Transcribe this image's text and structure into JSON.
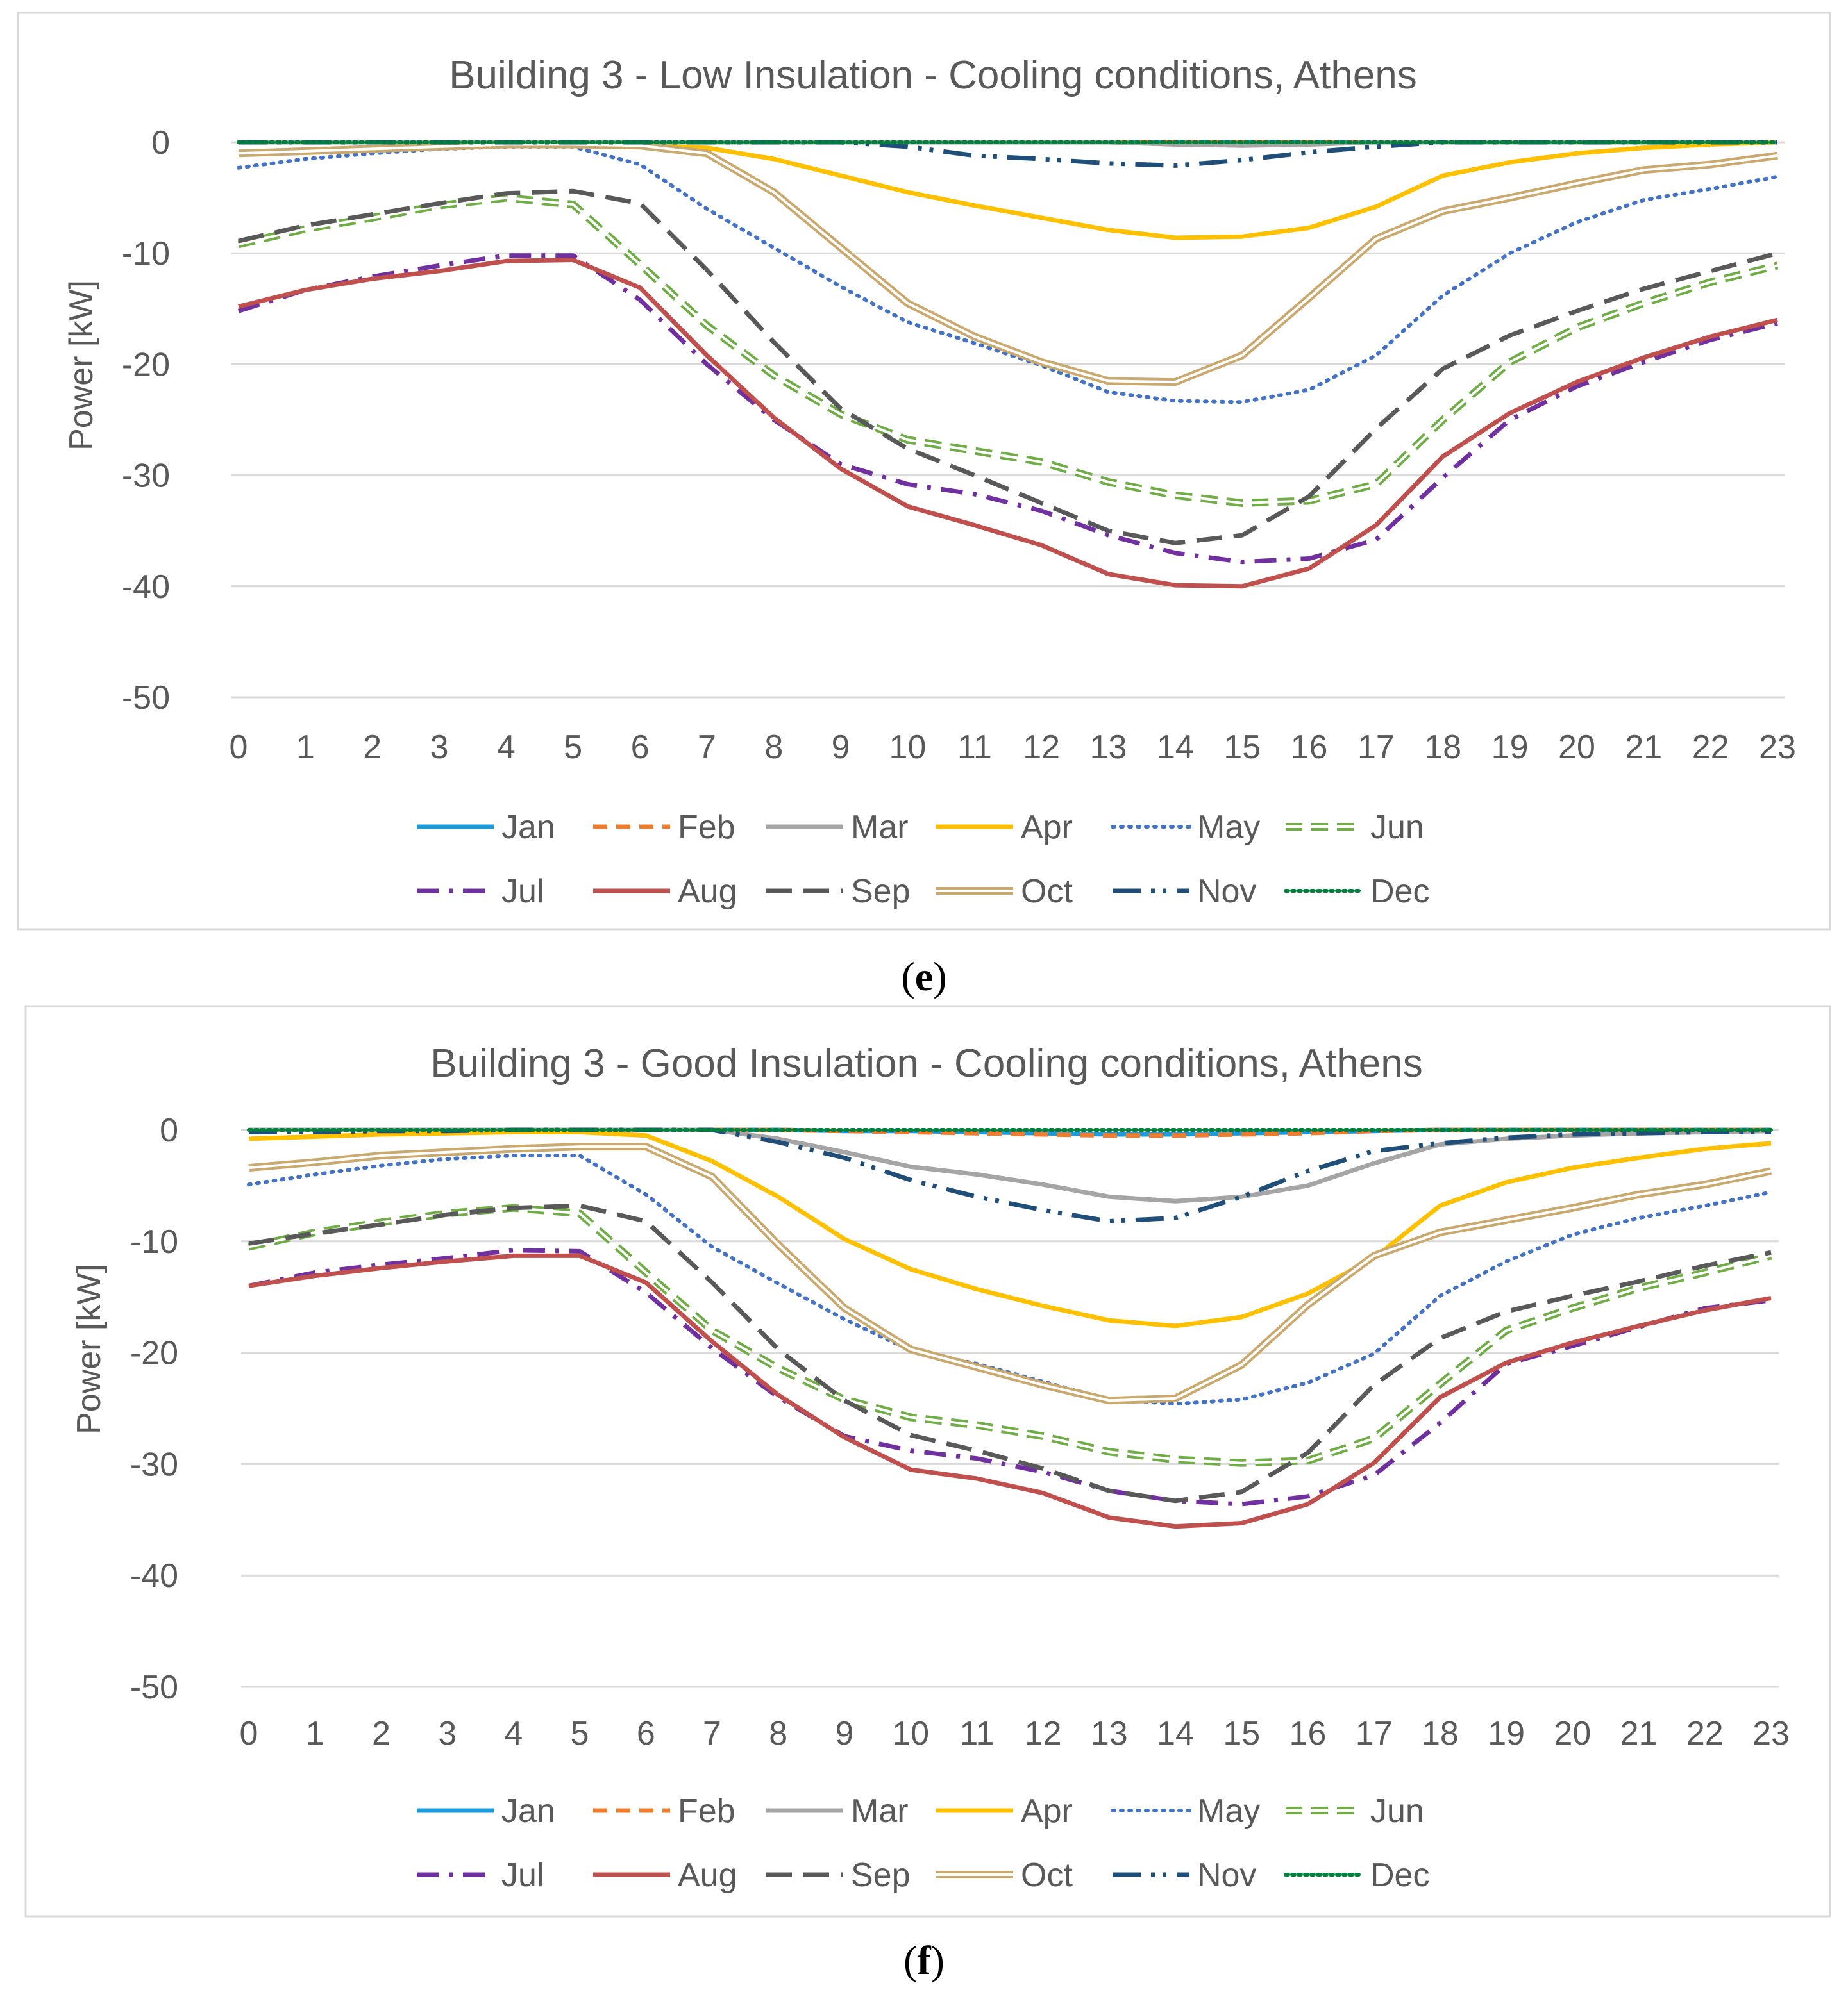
{
  "chart_data": [
    {
      "type": "line",
      "title": "Building 3 - Low Insulation - Cooling conditions, Athens",
      "caption_letter": "e",
      "caption_open": "(",
      "caption_close": ")",
      "xlabel": "",
      "ylabel": "Power [kW]",
      "ylim": [
        -50,
        0
      ],
      "yticks": [
        "0",
        "-10",
        "-20",
        "-30",
        "-40",
        "-50"
      ],
      "categories": [
        "0",
        "1",
        "2",
        "3",
        "4",
        "5",
        "6",
        "7",
        "8",
        "9",
        "10",
        "11",
        "12",
        "13",
        "14",
        "15",
        "16",
        "17",
        "18",
        "19",
        "20",
        "21",
        "22",
        "23"
      ],
      "legend_position": "bottom",
      "series": [
        {
          "name": "Jan",
          "color": "#1f9bd7",
          "dash": "solid",
          "values": [
            0,
            0,
            0,
            0,
            0,
            0,
            0,
            0,
            0,
            0,
            0,
            0,
            0,
            0,
            0,
            0,
            0,
            0,
            0,
            0,
            0,
            0,
            0,
            0
          ]
        },
        {
          "name": "Feb",
          "color": "#ed7d31",
          "dash": "dash",
          "values": [
            0,
            0,
            0,
            0,
            0,
            0,
            0,
            0,
            0,
            0,
            0,
            0,
            0,
            0,
            0,
            0,
            0,
            0,
            0,
            0,
            0,
            0,
            0,
            0
          ]
        },
        {
          "name": "Mar",
          "color": "#a5a5a5",
          "dash": "solid",
          "values": [
            0,
            0,
            0,
            0,
            0,
            0,
            0,
            0,
            0,
            0,
            0,
            0,
            0,
            0,
            -0.2,
            -0.3,
            -0.2,
            0,
            0,
            0,
            0,
            0,
            0,
            0
          ]
        },
        {
          "name": "Apr",
          "color": "#ffc000",
          "dash": "solid",
          "values": [
            -1,
            -0.7,
            -0.5,
            -0.3,
            -0.2,
            -0.2,
            -0.3,
            -0.5,
            -1.5,
            -3,
            -4.5,
            -5.7,
            -6.8,
            -7.9,
            -8.6,
            -8.5,
            -7.7,
            -5.8,
            -3,
            -1.8,
            -1,
            -0.5,
            -0.2,
            0
          ]
        },
        {
          "name": "May",
          "color": "#4472c4",
          "dash": "dot",
          "values": [
            -2.3,
            -1.5,
            -1,
            -0.6,
            -0.4,
            -0.4,
            -2,
            -6,
            -9.5,
            -13,
            -16.2,
            -18.1,
            -20.1,
            -22.5,
            -23.3,
            -23.4,
            -22.3,
            -19.2,
            -13.8,
            -10,
            -7.2,
            -5.2,
            -4.2,
            -3.1
          ]
        },
        {
          "name": "Jun",
          "color": "#70ad47",
          "dash": "double-dash",
          "values": [
            -9.2,
            -7.8,
            -6.8,
            -5.7,
            -5,
            -5.6,
            -11,
            -16.5,
            -21,
            -24.5,
            -26.8,
            -27.8,
            -28.8,
            -30.6,
            -31.8,
            -32.5,
            -32.3,
            -30.8,
            -25,
            -19.8,
            -16.7,
            -14.5,
            -12.6,
            -11.1
          ]
        },
        {
          "name": "Jul",
          "color": "#7030a0",
          "dash": "dashdot",
          "values": [
            -15.2,
            -13.3,
            -12.1,
            -11.1,
            -10.2,
            -10.2,
            -14.2,
            -20,
            -25,
            -29,
            -30.8,
            -31.7,
            -33.2,
            -35.4,
            -37,
            -37.8,
            -37.5,
            -35.8,
            -30.2,
            -25,
            -22,
            -19.8,
            -17.8,
            -16.3
          ]
        },
        {
          "name": "Aug",
          "color": "#c0504d",
          "dash": "solid",
          "values": [
            -14.8,
            -13.3,
            -12.3,
            -11.6,
            -10.7,
            -10.6,
            -13.1,
            -19.2,
            -24.8,
            -29.4,
            -32.8,
            -34.5,
            -36.3,
            -38.9,
            -39.9,
            -40,
            -38.4,
            -34.5,
            -28.3,
            -24.4,
            -21.6,
            -19.4,
            -17.5,
            -16
          ]
        },
        {
          "name": "Sep",
          "color": "#595959",
          "dash": "longdash",
          "values": [
            -8.9,
            -7.5,
            -6.5,
            -5.5,
            -4.6,
            -4.4,
            -5.5,
            -11.5,
            -18,
            -24,
            -27.6,
            -30,
            -32.5,
            -35,
            -36.1,
            -35.4,
            -31.9,
            -25.8,
            -20.4,
            -17.4,
            -15.2,
            -13.2,
            -11.6,
            -10
          ]
        },
        {
          "name": "Oct",
          "color": "#c9a96e",
          "dash": "double",
          "values": [
            -1,
            -0.8,
            -0.6,
            -0.4,
            -0.2,
            -0.2,
            -0.3,
            -1,
            -4.5,
            -9.5,
            -14.5,
            -17.5,
            -19.8,
            -21.5,
            -21.6,
            -19.2,
            -14,
            -8.7,
            -6.2,
            -5,
            -3.7,
            -2.5,
            -2,
            -1.2
          ]
        },
        {
          "name": "Nov",
          "color": "#1f4e79",
          "dash": "dashdotdot",
          "values": [
            0,
            0,
            0,
            0,
            0,
            0,
            0,
            0,
            0,
            0,
            -0.4,
            -1.2,
            -1.5,
            -1.9,
            -2.1,
            -1.6,
            -0.9,
            -0.4,
            0,
            0,
            0,
            0,
            0,
            0
          ]
        },
        {
          "name": "Dec",
          "color": "#00803c",
          "dash": "densedot",
          "values": [
            0,
            0,
            0,
            0,
            0,
            0,
            0,
            0,
            0,
            0,
            0,
            0,
            0,
            0,
            0,
            0,
            0,
            0,
            0,
            0,
            0,
            0,
            0,
            0
          ]
        }
      ]
    },
    {
      "type": "line",
      "title": "Building 3 - Good Insulation - Cooling conditions, Athens",
      "caption_letter": "f",
      "caption_open": "(",
      "caption_close": ")",
      "xlabel": "",
      "ylabel": "Power [kW]",
      "ylim": [
        -50,
        0
      ],
      "yticks": [
        "0",
        "-10",
        "-20",
        "-30",
        "-40",
        "-50"
      ],
      "categories": [
        "0",
        "1",
        "2",
        "3",
        "4",
        "5",
        "6",
        "7",
        "8",
        "9",
        "10",
        "11",
        "12",
        "13",
        "14",
        "15",
        "16",
        "17",
        "18",
        "19",
        "20",
        "21",
        "22",
        "23"
      ],
      "legend_position": "bottom",
      "series": [
        {
          "name": "Jan",
          "color": "#1f9bd7",
          "dash": "solid",
          "values": [
            0,
            0,
            0,
            0,
            0,
            0,
            0,
            0,
            0,
            -0.1,
            -0.1,
            -0.2,
            -0.3,
            -0.4,
            -0.4,
            -0.3,
            -0.2,
            -0.1,
            0,
            0,
            0,
            0,
            0,
            0
          ]
        },
        {
          "name": "Feb",
          "color": "#ed7d31",
          "dash": "dash",
          "values": [
            0,
            0,
            0,
            0,
            0,
            0,
            0,
            0,
            0,
            -0.1,
            -0.2,
            -0.3,
            -0.4,
            -0.5,
            -0.5,
            -0.4,
            -0.3,
            -0.1,
            0,
            0,
            0,
            0,
            0,
            0
          ]
        },
        {
          "name": "Mar",
          "color": "#a5a5a5",
          "dash": "solid",
          "values": [
            0,
            0,
            0,
            0,
            0,
            0,
            0,
            0,
            -0.8,
            -2,
            -3.3,
            -4,
            -4.9,
            -6,
            -6.4,
            -6,
            -5,
            -3,
            -1.3,
            -0.8,
            -0.5,
            -0.3,
            -0.2,
            -0.1
          ]
        },
        {
          "name": "Apr",
          "color": "#ffc000",
          "dash": "solid",
          "values": [
            -0.8,
            -0.6,
            -0.4,
            -0.3,
            -0.2,
            -0.2,
            -0.5,
            -2.8,
            -6,
            -9.8,
            -12.5,
            -14.3,
            -15.8,
            -17.1,
            -17.6,
            -16.8,
            -14.7,
            -11.5,
            -6.8,
            -4.7,
            -3.4,
            -2.5,
            -1.7,
            -1.2
          ]
        },
        {
          "name": "May",
          "color": "#4472c4",
          "dash": "dot",
          "values": [
            -4.9,
            -4,
            -3.2,
            -2.6,
            -2.3,
            -2.3,
            -5.8,
            -10.5,
            -13.8,
            -17,
            -19.8,
            -21,
            -22.6,
            -24.2,
            -24.6,
            -24.2,
            -22.7,
            -20.1,
            -14.9,
            -11.8,
            -9.4,
            -7.9,
            -6.8,
            -5.6
          ]
        },
        {
          "name": "Jun",
          "color": "#70ad47",
          "dash": "double-dash",
          "values": [
            -10.5,
            -9.2,
            -8.3,
            -7.5,
            -7,
            -7.5,
            -12.8,
            -18,
            -21.4,
            -24.2,
            -25.8,
            -26.5,
            -27.5,
            -28.9,
            -29.6,
            -29.9,
            -29.7,
            -27.7,
            -22.8,
            -18,
            -16,
            -14.2,
            -12.8,
            -11.3
          ]
        },
        {
          "name": "Jul",
          "color": "#7030a0",
          "dash": "dashdot",
          "values": [
            -14,
            -12.8,
            -12.1,
            -11.5,
            -10.8,
            -10.9,
            -14.6,
            -19.6,
            -24,
            -27.5,
            -28.8,
            -29.5,
            -30.7,
            -32.4,
            -33.3,
            -33.6,
            -32.9,
            -31,
            -26.3,
            -21,
            -19.4,
            -17.7,
            -16,
            -15.3
          ]
        },
        {
          "name": "Aug",
          "color": "#c0504d",
          "dash": "solid",
          "values": [
            -14,
            -13.1,
            -12.4,
            -11.8,
            -11.3,
            -11.3,
            -13.7,
            -19,
            -23.8,
            -27.6,
            -30.5,
            -31.3,
            -32.6,
            -34.8,
            -35.6,
            -35.3,
            -33.6,
            -29.9,
            -24,
            -20.9,
            -19.1,
            -17.6,
            -16.2,
            -15.1
          ]
        },
        {
          "name": "Sep",
          "color": "#595959",
          "dash": "longdash",
          "values": [
            -10.2,
            -9.3,
            -8.5,
            -7.6,
            -7,
            -6.8,
            -8.2,
            -13.7,
            -19.7,
            -24.3,
            -27.4,
            -28.8,
            -30.4,
            -32.4,
            -33.3,
            -32.5,
            -29,
            -22.9,
            -18.7,
            -16.3,
            -14.9,
            -13.6,
            -12.2,
            -11
          ]
        },
        {
          "name": "Oct",
          "color": "#c9a96e",
          "dash": "double",
          "values": [
            -3.4,
            -2.9,
            -2.3,
            -2,
            -1.7,
            -1.5,
            -1.5,
            -4.2,
            -10.3,
            -16,
            -19.7,
            -21.3,
            -22.9,
            -24.3,
            -24.1,
            -21.1,
            -15.7,
            -11.3,
            -9.2,
            -8.1,
            -7,
            -5.8,
            -4.9,
            -3.7
          ]
        },
        {
          "name": "Nov",
          "color": "#1f4e79",
          "dash": "dashdotdot",
          "values": [
            -0.2,
            -0.2,
            -0.1,
            -0.1,
            0,
            0,
            0,
            0,
            -1.1,
            -2.5,
            -4.5,
            -6,
            -7.2,
            -8.2,
            -7.9,
            -6,
            -3.7,
            -1.9,
            -1.2,
            -0.7,
            -0.4,
            -0.3,
            -0.2,
            -0.2
          ]
        },
        {
          "name": "Dec",
          "color": "#00803c",
          "dash": "densedot",
          "values": [
            0,
            0,
            0,
            0,
            0,
            0,
            0,
            0,
            0,
            0,
            0,
            0,
            0,
            0,
            0,
            0,
            0,
            0,
            0,
            0,
            0,
            0,
            0,
            0
          ]
        }
      ]
    }
  ]
}
